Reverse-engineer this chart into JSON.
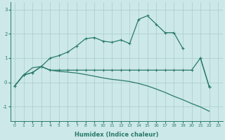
{
  "xlabel": "Humidex (Indice chaleur)",
  "background_color": "#cce8e8",
  "grid_color": "#aacccc",
  "line_color": "#2a7a6a",
  "x_values": [
    0,
    1,
    2,
    3,
    4,
    5,
    6,
    7,
    8,
    9,
    10,
    11,
    12,
    13,
    14,
    15,
    16,
    17,
    18,
    19,
    20,
    21,
    22,
    23
  ],
  "line1_y": [
    -0.15,
    0.3,
    0.4,
    0.65,
    1.0,
    1.1,
    1.25,
    1.5,
    1.8,
    1.85,
    1.7,
    1.65,
    1.75,
    1.6,
    2.6,
    2.75,
    2.4,
    2.05,
    2.05,
    1.4,
    null,
    1.0,
    -0.2,
    null
  ],
  "line2_y": [
    -0.15,
    0.3,
    0.4,
    0.65,
    0.5,
    0.5,
    0.5,
    0.5,
    0.5,
    0.5,
    0.5,
    0.5,
    0.5,
    0.5,
    0.5,
    0.5,
    0.5,
    0.5,
    0.5,
    0.5,
    0.5,
    1.0,
    -0.2,
    null
  ],
  "line3_y": [
    -0.15,
    0.3,
    0.6,
    0.65,
    0.5,
    0.45,
    0.42,
    0.38,
    0.32,
    0.25,
    0.18,
    0.12,
    0.08,
    0.03,
    -0.05,
    -0.15,
    -0.28,
    -0.42,
    -0.58,
    -0.72,
    -0.88,
    -1.02,
    -1.2,
    null
  ],
  "ylim": [
    -1.6,
    3.3
  ],
  "yticks": [
    -1,
    0,
    1,
    2,
    3
  ],
  "xlim": [
    -0.5,
    23.5
  ],
  "title_fontsize": 7,
  "xlabel_fontsize": 6,
  "tick_fontsize": 4.5
}
